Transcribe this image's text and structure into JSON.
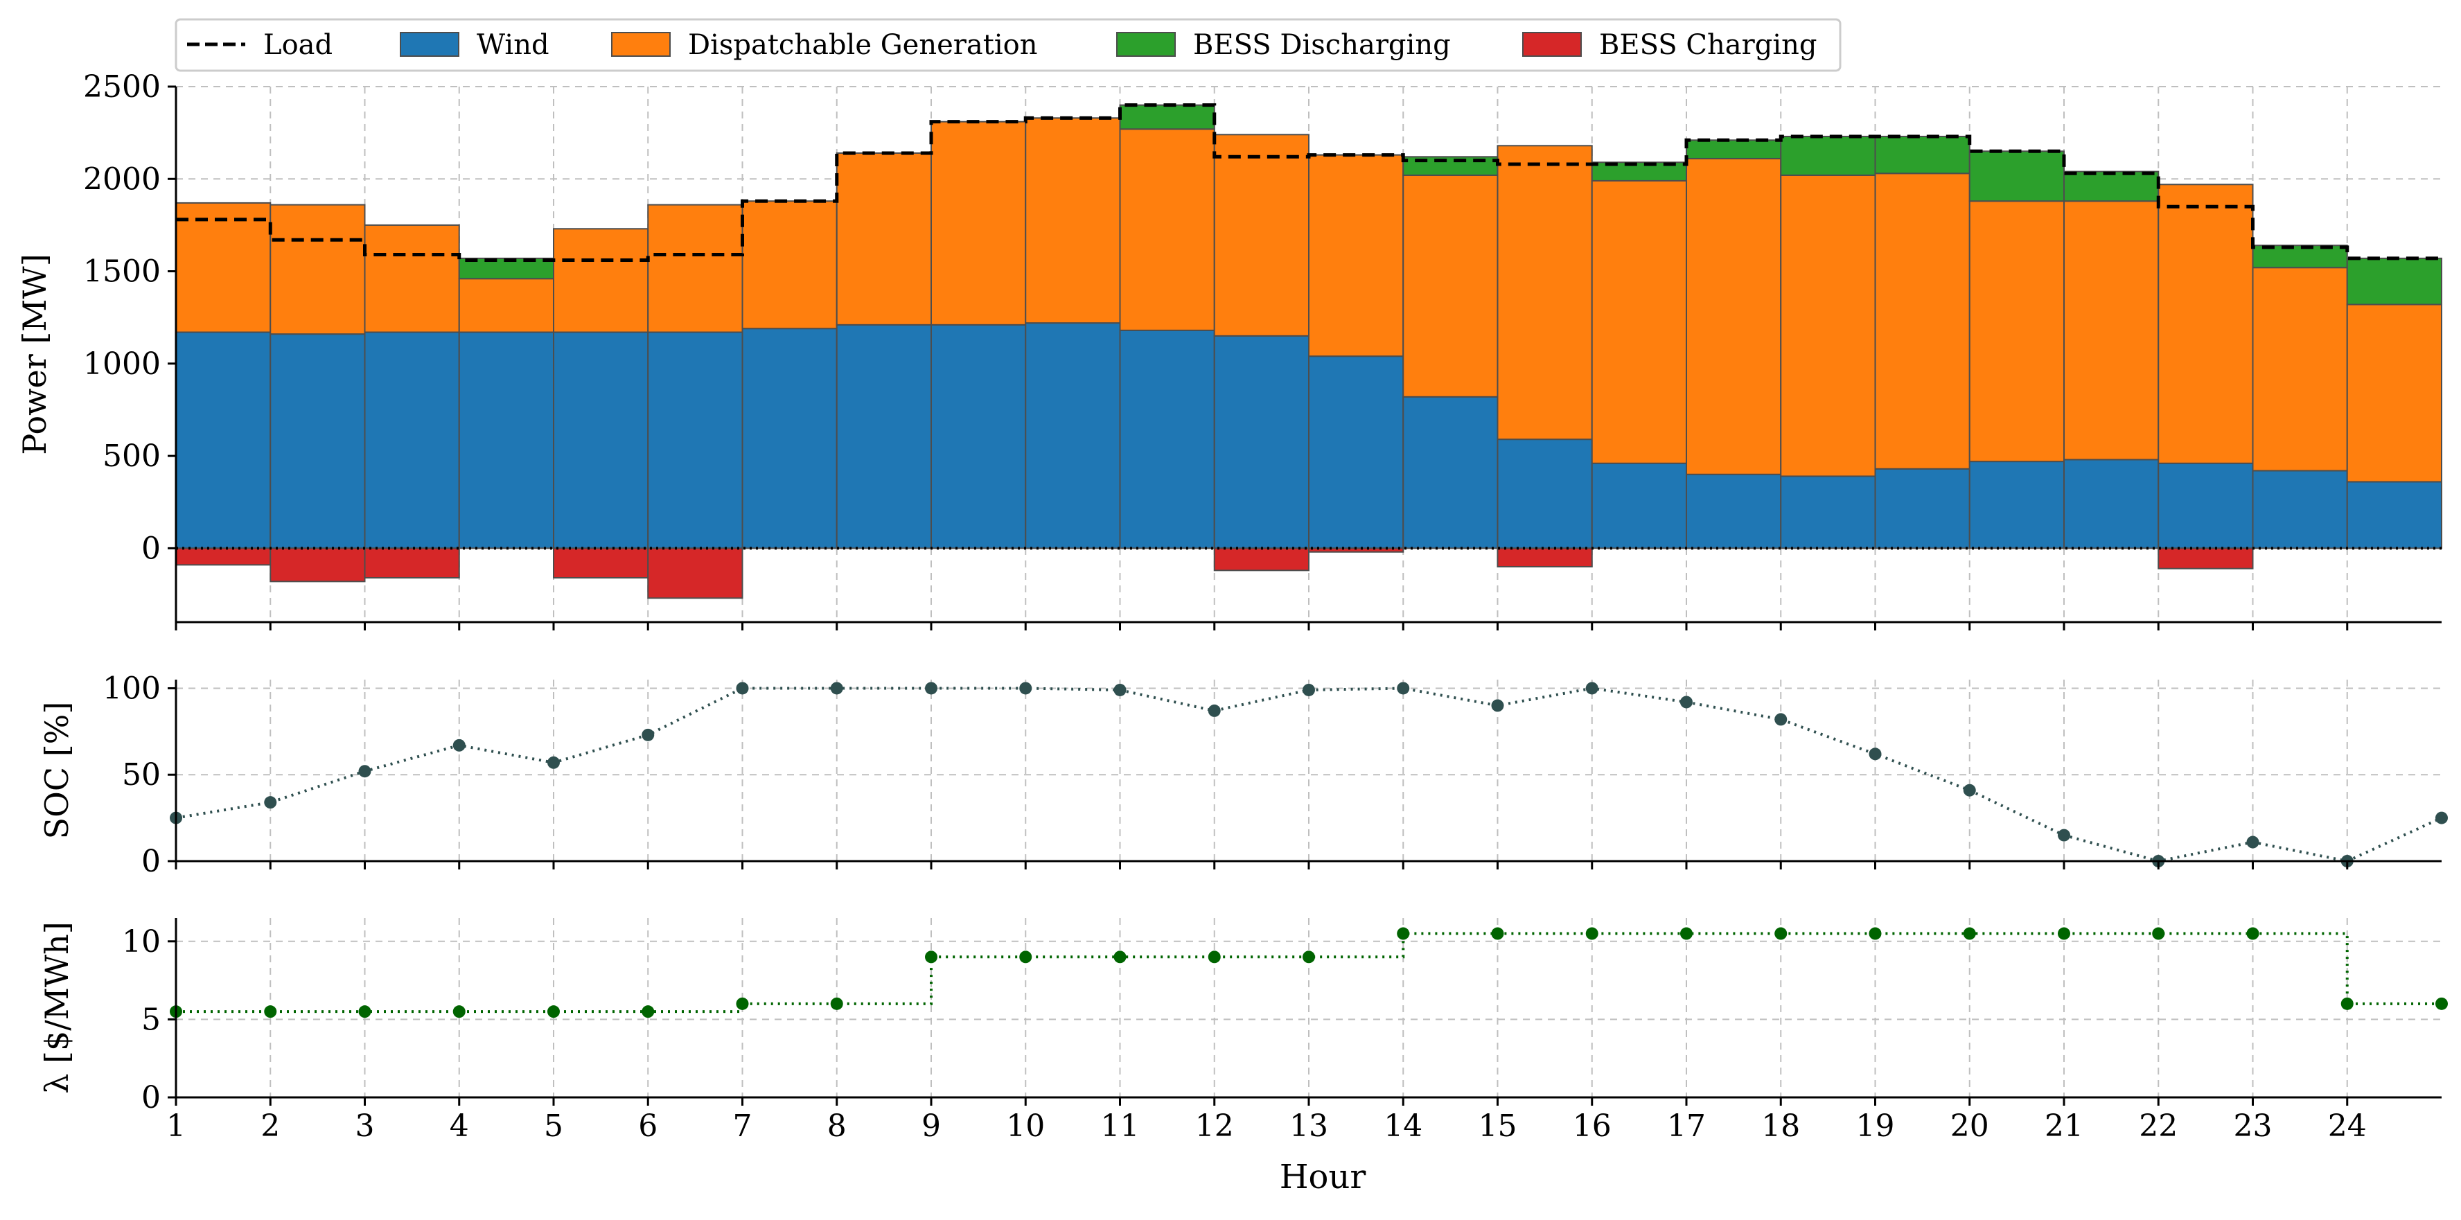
{
  "chart_data": [
    {
      "type": "area",
      "panel": "dispatch",
      "ylabel": "Power [MW]",
      "xlabel": "",
      "ylim": [
        -400,
        2500
      ],
      "yticks": [
        0,
        500,
        1000,
        1500,
        2000,
        2500
      ],
      "grid": true,
      "legend_position": "top-left",
      "x": [
        1,
        2,
        3,
        4,
        5,
        6,
        7,
        8,
        9,
        10,
        11,
        12,
        13,
        14,
        15,
        16,
        17,
        18,
        19,
        20,
        21,
        22,
        23,
        24
      ],
      "series": [
        {
          "name": "Load",
          "style": "dashed-step",
          "color": "#000000",
          "values": [
            1780,
            1670,
            1590,
            1560,
            1560,
            1590,
            1880,
            2140,
            2310,
            2330,
            2400,
            2120,
            2130,
            2100,
            2080,
            2080,
            2210,
            2230,
            2230,
            2150,
            2030,
            1850,
            1630,
            1570
          ]
        },
        {
          "name": "Wind",
          "color": "#1f77b4",
          "values": [
            1170,
            1160,
            1170,
            1170,
            1170,
            1170,
            1190,
            1210,
            1210,
            1220,
            1180,
            1150,
            1040,
            820,
            590,
            460,
            400,
            390,
            430,
            470,
            480,
            460,
            420,
            360
          ]
        },
        {
          "name": "Dispatchable Generation",
          "color": "#ff7f0e",
          "values": [
            700,
            700,
            580,
            290,
            560,
            690,
            690,
            930,
            1100,
            1110,
            1090,
            1090,
            1090,
            1200,
            1590,
            1530,
            1710,
            1630,
            1600,
            1410,
            1400,
            1510,
            1100,
            960
          ]
        },
        {
          "name": "BESS Discharging",
          "color": "#2ca02c",
          "values": [
            0,
            0,
            0,
            110,
            0,
            0,
            0,
            0,
            0,
            0,
            130,
            0,
            0,
            100,
            0,
            100,
            100,
            210,
            200,
            270,
            160,
            0,
            120,
            250
          ]
        },
        {
          "name": "BESS Charging",
          "color": "#d62728",
          "values": [
            -90,
            -180,
            -160,
            0,
            -160,
            -270,
            0,
            0,
            0,
            0,
            0,
            -120,
            -20,
            0,
            -100,
            0,
            0,
            0,
            0,
            0,
            0,
            -110,
            0,
            0
          ]
        }
      ]
    },
    {
      "type": "line",
      "panel": "soc",
      "ylabel": "SOC [%]",
      "ylim": [
        0,
        105
      ],
      "yticks": [
        0,
        50,
        100
      ],
      "grid": true,
      "x": [
        1,
        2,
        3,
        4,
        5,
        6,
        7,
        8,
        9,
        10,
        11,
        12,
        13,
        14,
        15,
        16,
        17,
        18,
        19,
        20,
        21,
        22,
        23,
        24,
        25
      ],
      "values": [
        25,
        34,
        52,
        67,
        57,
        73,
        100,
        100,
        100,
        100,
        99,
        87,
        99,
        100,
        90,
        100,
        92,
        82,
        62,
        41,
        15,
        0,
        11,
        0,
        25
      ],
      "color": "#2f4f4f"
    },
    {
      "type": "line",
      "panel": "price",
      "ylabel": "λ [$/MWh]",
      "xlabel": "Hour",
      "ylim": [
        0,
        11.5
      ],
      "yticks": [
        0,
        5,
        10
      ],
      "grid": true,
      "x": [
        1,
        2,
        3,
        4,
        5,
        6,
        7,
        8,
        9,
        10,
        11,
        12,
        13,
        14,
        15,
        16,
        17,
        18,
        19,
        20,
        21,
        22,
        23,
        24,
        25
      ],
      "values": [
        5.5,
        5.5,
        5.5,
        5.5,
        5.5,
        5.5,
        6,
        6,
        9,
        9,
        9,
        9,
        9,
        10.5,
        10.5,
        10.5,
        10.5,
        10.5,
        10.5,
        10.5,
        10.5,
        10.5,
        10.5,
        6,
        6
      ],
      "color": "#006400",
      "xticks": [
        "1",
        "2",
        "3",
        "4",
        "5",
        "6",
        "7",
        "8",
        "9",
        "10",
        "11",
        "12",
        "13",
        "14",
        "15",
        "16",
        "17",
        "18",
        "19",
        "20",
        "21",
        "22",
        "23",
        "24"
      ]
    }
  ]
}
